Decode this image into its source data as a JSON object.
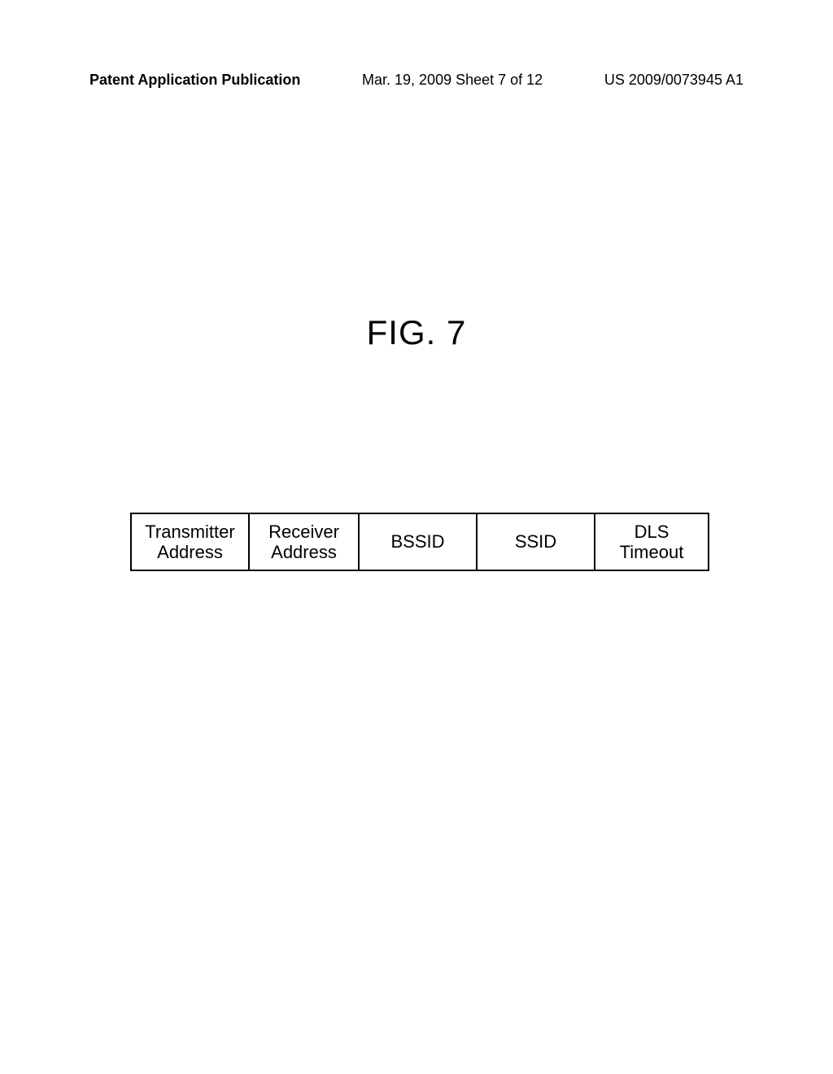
{
  "header": {
    "left": "Patent Application Publication",
    "center": "Mar. 19, 2009  Sheet 7 of 12",
    "right": "US 2009/0073945 A1"
  },
  "figure_title": "FIG. 7",
  "frame": {
    "cells": [
      {
        "line1": "Transmitter",
        "line2": "Address"
      },
      {
        "line1": "Receiver",
        "line2": "Address"
      },
      {
        "line1": "BSSID",
        "line2": ""
      },
      {
        "line1": "SSID",
        "line2": ""
      },
      {
        "line1": "DLS",
        "line2": "Timeout"
      }
    ]
  }
}
